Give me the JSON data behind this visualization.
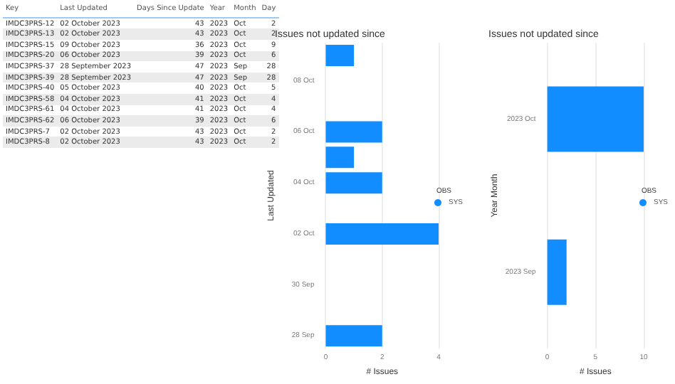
{
  "chart_data": [
    {
      "type": "other",
      "annotations": [
        "Key",
        "Last Updated",
        "Days Since Update",
        "Year",
        "Month",
        "Day",
        "IMDC3PRS-12",
        "02 October 2023",
        "43",
        "2023",
        "Oct",
        "2",
        "IMDC3PRS-13",
        "02 October 2023",
        "43",
        "2023",
        "Oct",
        "2",
        "IMDC3PRS-15",
        "09 October 2023",
        "36",
        "2023",
        "Oct",
        "9",
        "IMDC3PRS-20",
        "06 October 2023",
        "39",
        "2023",
        "Oct",
        "6",
        "IMDC3PRS-37",
        "28 September 2023",
        "47",
        "2023",
        "Sep",
        "28",
        "IMDC3PRS-39",
        "28 September 2023",
        "47",
        "2023",
        "Sep",
        "28",
        "IMDC3PRS-40",
        "05 October 2023",
        "40",
        "2023",
        "Oct",
        "5",
        "IMDC3PRS-58",
        "04 October 2023",
        "41",
        "2023",
        "Oct",
        "4",
        "IMDC3PRS-61",
        "04 October 2023",
        "41",
        "2023",
        "Oct",
        "4",
        "IMDC3PRS-62",
        "06 October 2023",
        "39",
        "2023",
        "Oct",
        "6",
        "IMDC3PRS-7",
        "02 October 2023",
        "43",
        "2023",
        "Oct",
        "2",
        "IMDC3PRS-8",
        "02 October 2023",
        "43",
        "2023",
        "Oct",
        "2"
      ]
    },
    {
      "type": "bar",
      "orientation": "horizontal",
      "title": "Issues not updated since",
      "xlabel": "# Issues",
      "ylabel": "Last Updated",
      "legend_title": "OBS",
      "legend": "right",
      "grid": "x",
      "categories": [
        null,
        "08 Oct",
        null,
        "06 Oct",
        null,
        "04 Oct",
        null,
        "02 Oct",
        null,
        "30 Sep",
        null,
        "28 Sep"
      ],
      "series": [
        {
          "name": "SYS",
          "color": "#118dff",
          "values": [
            1,
            null,
            null,
            2,
            1,
            2,
            null,
            4,
            null,
            null,
            null,
            2
          ]
        }
      ],
      "xlim": [
        0,
        4
      ],
      "xticks": [
        0,
        2,
        4
      ]
    },
    {
      "type": "bar",
      "orientation": "horizontal",
      "title": "Issues not updated since",
      "xlabel": "# Issues",
      "ylabel": "Year Month",
      "legend_title": "OBS",
      "legend": "right",
      "grid": "x",
      "categories": [
        "2023 Oct",
        "2023 Sep"
      ],
      "series": [
        {
          "name": "SYS",
          "color": "#118dff",
          "values": [
            10,
            2
          ]
        }
      ],
      "xlim": [
        0,
        10
      ],
      "xticks": [
        0,
        5,
        10
      ]
    }
  ]
}
